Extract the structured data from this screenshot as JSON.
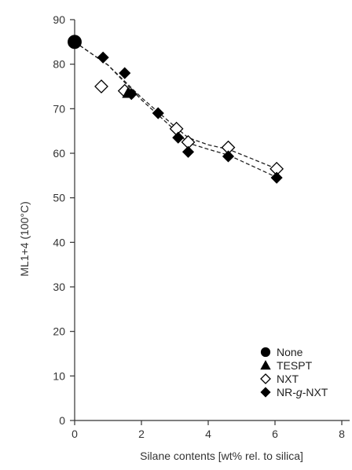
{
  "chart_data": {
    "type": "scatter",
    "xlabel": "Silane contents [wt% rel. to silica]",
    "ylabel": "ML1+4 (100°C)",
    "xlim": [
      0,
      8
    ],
    "ylim": [
      0,
      90
    ],
    "x_ticks": [
      "0",
      "2",
      "4",
      "6",
      "8"
    ],
    "y_ticks": [
      "0",
      "10",
      "20",
      "30",
      "40",
      "50",
      "60",
      "70",
      "80",
      "90"
    ],
    "legend_position": "bottom-right",
    "series": [
      {
        "name": "None",
        "marker": "circle",
        "fill": "#000000",
        "points": [
          [
            0,
            85
          ]
        ]
      },
      {
        "name": "TESPT",
        "marker": "triangle",
        "fill": "#000000",
        "points": [
          [
            1.6,
            73.5
          ]
        ]
      },
      {
        "name": "NXT",
        "marker": "diamond",
        "fill": "#ffffff",
        "points": [
          [
            0.8,
            75
          ],
          [
            1.5,
            74
          ],
          [
            3.05,
            65.5
          ],
          [
            3.4,
            62.5
          ],
          [
            4.6,
            61.3
          ],
          [
            6.05,
            56.5
          ]
        ]
      },
      {
        "name": "NR-g-NXT",
        "name_prefix": "NR-",
        "name_italic": "g",
        "name_suffix": "-NXT",
        "marker": "diamond",
        "fill": "#000000",
        "points": [
          [
            0.85,
            81.5
          ],
          [
            1.5,
            78
          ],
          [
            1.7,
            73.3
          ],
          [
            2.5,
            69
          ],
          [
            3.1,
            63.5
          ],
          [
            3.4,
            60.3
          ],
          [
            4.6,
            59.3
          ],
          [
            6.05,
            54.5
          ]
        ]
      }
    ],
    "fit_lines": [
      {
        "series": "NXT",
        "style": "dashed",
        "points": [
          [
            0,
            85
          ],
          [
            1,
            79.8
          ],
          [
            2,
            72.5
          ],
          [
            3,
            66
          ],
          [
            3.4,
            63.5
          ],
          [
            4,
            61.9
          ],
          [
            4.6,
            60.9
          ],
          [
            5.3,
            58.8
          ],
          [
            6.05,
            56.5
          ]
        ]
      },
      {
        "series": "NR-g-NXT",
        "style": "dashed",
        "points": [
          [
            0,
            85
          ],
          [
            1,
            79.8
          ],
          [
            2,
            72
          ],
          [
            3,
            65.2
          ],
          [
            3.4,
            62.3
          ],
          [
            4,
            60.9
          ],
          [
            4.6,
            59.6
          ],
          [
            5.3,
            57.2
          ],
          [
            6.05,
            54.6
          ]
        ]
      }
    ]
  }
}
